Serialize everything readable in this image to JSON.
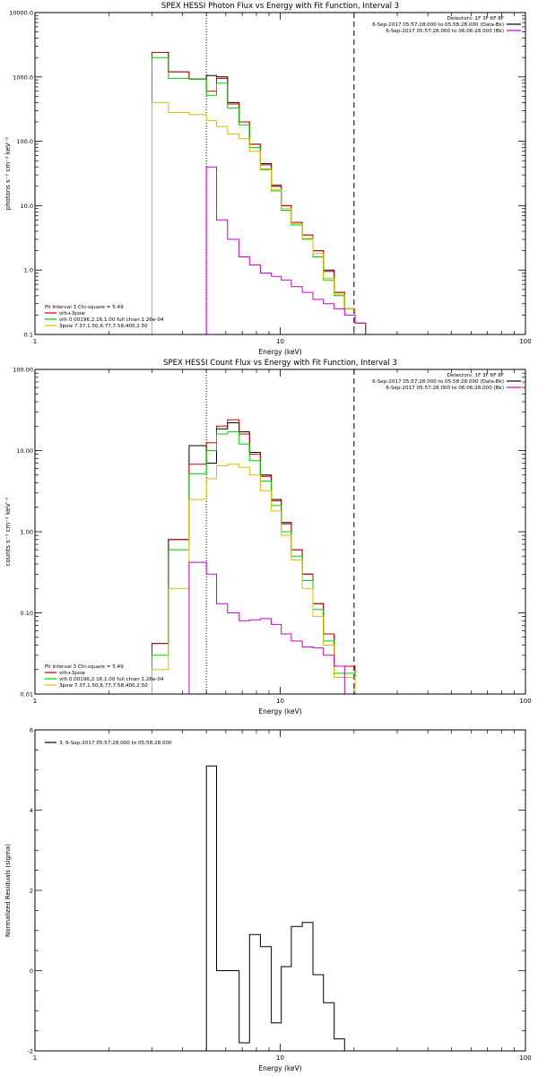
{
  "chart_data": [
    {
      "type": "line",
      "title": "SPEX HESSI Photon Flux vs Energy with Fit Function, Interval 3",
      "xlabel": "Energy (keV)",
      "ylabel": "photons s⁻¹ cm⁻² keV⁻¹",
      "x_scale": "log",
      "y_scale": "log",
      "xlim": [
        1,
        100
      ],
      "ylim": [
        0.1,
        10000
      ],
      "x_tick_labels": [
        "1",
        "10",
        "100"
      ],
      "y_tick_values": [
        0.1,
        1,
        10,
        100,
        1000,
        10000
      ],
      "y_tick_labels": [
        "0.1",
        "1.0",
        "10.0",
        "100.0",
        "1000.0",
        "10000.0"
      ],
      "markers": [
        {
          "x": 5.0,
          "style": "dotted"
        },
        {
          "x": 20.0,
          "style": "dashed"
        }
      ],
      "legend_top": {
        "position": "top-right",
        "lines": [
          {
            "text": "Detectors: 1F 3F 6F 8F",
            "color": ""
          },
          {
            "text": "6-Sep-2017 05:57:28.000 to 05:58:28.000 (Data-Bk)",
            "color": "#000000"
          },
          {
            "text": "6-Sep-2017 05:57:28.000 to 06:06:28.000 (Bk)",
            "color": "#cc00cc"
          }
        ]
      },
      "legend_bottom": {
        "position": "bottom-left",
        "lines": [
          {
            "text": "Fit Interval 3   Chi-square = 5.49",
            "color": ""
          },
          {
            "text": "vth+3pow",
            "color": "#cc0000"
          },
          {
            "text": "vth 0.00196,2.16,1.00  full chian 1.26e-04",
            "color": "#00cc00"
          },
          {
            "text": "3pow 7.37,1.50,6.77,7.58,400,2.50",
            "color": "#ddbb00"
          }
        ]
      },
      "edges": [
        3,
        3.5,
        4.25,
        5,
        5.5,
        6.1,
        6.8,
        7.5,
        8.3,
        9.2,
        10.1,
        11.1,
        12.3,
        13.6,
        15,
        16.6,
        18.3,
        20.2,
        22.3
      ],
      "series": [
        {
          "name": "",
          "color": "#000000",
          "values": [
            2400,
            1200,
            930,
            1050,
            1000,
            400,
            200,
            90,
            45,
            20,
            10,
            5.5,
            3.5,
            2,
            1,
            0.45,
            0.25,
            0.15
          ]
        },
        {
          "name": "",
          "color": "#cc0000",
          "values": [
            2400,
            1200,
            930,
            600,
            950,
            380,
            200,
            90,
            43,
            21,
            10,
            5.5,
            3.5,
            2,
            0.95,
            0.45,
            0.25,
            0.15
          ]
        },
        {
          "name": "",
          "color": "#00cc00",
          "values": [
            2000,
            950,
            920,
            520,
            800,
            330,
            180,
            80,
            37,
            17,
            8.5,
            5,
            3,
            1.6,
            0.7,
            0.4,
            0.25,
            0.15
          ]
        },
        {
          "name": "",
          "color": "#ddbb00",
          "values": [
            400,
            280,
            260,
            210,
            170,
            130,
            110,
            70,
            36,
            18,
            9,
            5.3,
            3.1,
            1.8,
            0.75,
            0.42,
            0.25,
            0.15
          ]
        },
        {
          "name": "",
          "color": "#cc00cc",
          "values": [
            0.1,
            0.1,
            0.1,
            40,
            6,
            3,
            1.6,
            1.2,
            0.9,
            0.8,
            0.7,
            0.55,
            0.45,
            0.35,
            0.3,
            0.25,
            0.2,
            0.15
          ]
        }
      ]
    },
    {
      "type": "line",
      "title": "SPEX HESSI Count Flux vs Energy with Fit Function, Interval 3",
      "xlabel": "Energy (keV)",
      "ylabel": "counts s⁻¹ cm⁻² keV⁻¹",
      "x_scale": "log",
      "y_scale": "log",
      "xlim": [
        1,
        100
      ],
      "ylim": [
        0.01,
        100
      ],
      "x_tick_labels": [
        "1",
        "10",
        "100"
      ],
      "y_tick_values": [
        0.01,
        0.1,
        1,
        10,
        100
      ],
      "y_tick_labels": [
        "0.01",
        "0.10",
        "1.00",
        "10.00",
        "100.00"
      ],
      "markers": [
        {
          "x": 5.0,
          "style": "dotted"
        },
        {
          "x": 20.0,
          "style": "dashed"
        }
      ],
      "legend_top": {
        "position": "top-right",
        "lines": [
          {
            "text": "Detectors: 1F 3F 6F 8F",
            "color": ""
          },
          {
            "text": "6-Sep-2017 05:57:28.000 to 05:58:28.000 (Data-Bk)",
            "color": "#000000"
          },
          {
            "text": "6-Sep-2017 05:57:28.000 to 06:06:28.000 (Bk)",
            "color": "#cc00cc"
          }
        ]
      },
      "legend_bottom": {
        "position": "bottom-left",
        "lines": [
          {
            "text": "Fit Interval 3   Chi-square = 5.49",
            "color": ""
          },
          {
            "text": "vth+3pow",
            "color": "#cc0000"
          },
          {
            "text": "vth 0.00196,2.16,1.00  full chian 1.26e-04",
            "color": "#00cc00"
          },
          {
            "text": "3pow 7.37,1.50,6.77,7.58,400,2.50",
            "color": "#ddbb00"
          }
        ]
      },
      "edges": [
        3,
        3.5,
        4.25,
        5,
        5.5,
        6.1,
        6.8,
        7.5,
        8.3,
        9.2,
        10.1,
        11.1,
        12.3,
        13.6,
        15,
        16.6,
        18.3,
        20.2,
        22.3
      ],
      "series": [
        {
          "name": "",
          "color": "#000000",
          "values": [
            0.042,
            0.8,
            11.5,
            7,
            18.5,
            22,
            17,
            9.5,
            5,
            2.5,
            1.3,
            0.6,
            0.3,
            0.13,
            0.055,
            0.022,
            0.022,
            0.01
          ]
        },
        {
          "name": "",
          "color": "#cc0000",
          "values": [
            0.042,
            0.8,
            6.8,
            12.5,
            20,
            24,
            16,
            9,
            4.8,
            2.4,
            1.25,
            0.6,
            0.3,
            0.13,
            0.055,
            0.022,
            0.022,
            0.01
          ]
        },
        {
          "name": "",
          "color": "#00cc00",
          "values": [
            0.03,
            0.6,
            5.2,
            10,
            16,
            17,
            12,
            7.5,
            4.2,
            2.1,
            1,
            0.5,
            0.25,
            0.11,
            0.045,
            0.018,
            0.018,
            0.01
          ]
        },
        {
          "name": "",
          "color": "#ddbb00",
          "values": [
            0.02,
            0.2,
            2.5,
            4.5,
            6.5,
            6.8,
            6.2,
            5,
            3.2,
            1.8,
            0.9,
            0.45,
            0.2,
            0.09,
            0.04,
            0.016,
            0.016,
            0.01
          ]
        },
        {
          "name": "",
          "color": "#cc00cc",
          "values": [
            0.01,
            0.01,
            0.42,
            0.3,
            0.13,
            0.1,
            0.08,
            0.082,
            0.085,
            0.072,
            0.055,
            0.045,
            0.038,
            0.037,
            0.03,
            0.022,
            0.01,
            0.01
          ]
        }
      ]
    },
    {
      "type": "line",
      "title": "",
      "xlabel": "Energy (keV)",
      "ylabel": "Normalized Residuals (sigma)",
      "x_scale": "log",
      "y_scale": "linear",
      "xlim": [
        1,
        100
      ],
      "ylim": [
        -2,
        6
      ],
      "x_tick_labels": [
        "1",
        "10",
        "100"
      ],
      "y_tick_values": [
        -2,
        0,
        2,
        4,
        6
      ],
      "y_tick_labels": [
        "-2",
        "0",
        "2",
        "4",
        "6"
      ],
      "legend_top": {
        "position": "top-left",
        "lines": [
          {
            "text": "3.  6-Sep-2017 05:57:28.000 to 05:58:28.000",
            "color": "#000000"
          }
        ]
      },
      "edges": [
        5,
        5.5,
        6.1,
        6.8,
        7.5,
        8.3,
        9.2,
        10.1,
        11.1,
        12.3,
        13.6,
        15,
        16.6,
        18.3,
        20.2
      ],
      "series": [
        {
          "name": "",
          "color": "#000000",
          "values": [
            5.1,
            0.0,
            0.0,
            -1.8,
            0.9,
            0.6,
            -1.3,
            0.1,
            1.1,
            1.2,
            -0.1,
            -0.8,
            -1.7,
            -2.0
          ]
        }
      ]
    }
  ]
}
